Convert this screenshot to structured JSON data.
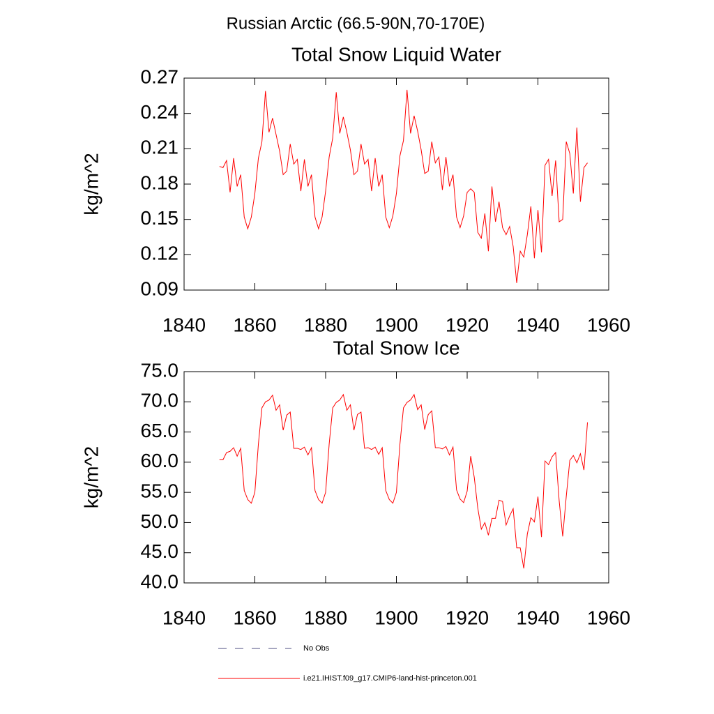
{
  "title": "Russian Arctic (66.5-90N,70-170E)",
  "legend_items": [
    {
      "name": "No Obs",
      "color": "#4d4d80",
      "dash": "12 12"
    }
  ],
  "chart_data": [
    {
      "type": "line",
      "title": "Total Snow Liquid Water",
      "ylabel": "kg/m^2",
      "x": [
        1850,
        1851,
        1852,
        1853,
        1854,
        1855,
        1856,
        1857,
        1858,
        1859,
        1860,
        1861,
        1862,
        1863,
        1864,
        1865,
        1866,
        1867,
        1868,
        1869,
        1870,
        1871,
        1872,
        1873,
        1874,
        1875,
        1876,
        1877,
        1878,
        1879,
        1880,
        1881,
        1882,
        1883,
        1884,
        1885,
        1886,
        1887,
        1888,
        1889,
        1890,
        1891,
        1892,
        1893,
        1894,
        1895,
        1896,
        1897,
        1898,
        1899,
        1900,
        1901,
        1902,
        1903,
        1904,
        1905,
        1906,
        1907,
        1908,
        1909,
        1910,
        1911,
        1912,
        1913,
        1914,
        1915,
        1916,
        1917,
        1918,
        1919,
        1920,
        1921,
        1922,
        1923,
        1924,
        1925,
        1926,
        1927,
        1928,
        1929,
        1930,
        1931,
        1932,
        1933,
        1934,
        1935,
        1936,
        1937,
        1938,
        1939,
        1940,
        1941,
        1942,
        1943,
        1944,
        1945,
        1946,
        1947,
        1948,
        1949,
        1950,
        1951,
        1952,
        1953,
        1954
      ],
      "xlim": [
        1840,
        1960
      ],
      "xticks": [
        1840,
        1860,
        1880,
        1900,
        1920,
        1940,
        1960
      ],
      "ylim": [
        0.09,
        0.27
      ],
      "yticks": [
        0.09,
        0.12,
        0.15,
        0.18,
        0.21,
        0.24,
        0.27
      ],
      "series": [
        {
          "name": "i.e21.IHIST.f09_g17.CMIP6-land-hist-princeton.001",
          "color": "#ff0000",
          "values": [
            0.195,
            0.194,
            0.2,
            0.173,
            0.202,
            0.178,
            0.188,
            0.152,
            0.142,
            0.152,
            0.172,
            0.202,
            0.216,
            0.259,
            0.224,
            0.236,
            0.222,
            0.208,
            0.188,
            0.191,
            0.214,
            0.197,
            0.201,
            0.174,
            0.201,
            0.178,
            0.188,
            0.152,
            0.142,
            0.152,
            0.174,
            0.203,
            0.219,
            0.258,
            0.223,
            0.237,
            0.224,
            0.209,
            0.188,
            0.191,
            0.214,
            0.197,
            0.201,
            0.174,
            0.202,
            0.178,
            0.188,
            0.152,
            0.143,
            0.153,
            0.172,
            0.204,
            0.217,
            0.26,
            0.223,
            0.238,
            0.225,
            0.209,
            0.189,
            0.191,
            0.216,
            0.198,
            0.203,
            0.175,
            0.203,
            0.178,
            0.188,
            0.152,
            0.143,
            0.153,
            0.173,
            0.176,
            0.173,
            0.139,
            0.134,
            0.155,
            0.123,
            0.178,
            0.148,
            0.165,
            0.143,
            0.137,
            0.144,
            0.127,
            0.096,
            0.123,
            0.118,
            0.137,
            0.161,
            0.117,
            0.158,
            0.122,
            0.196,
            0.201,
            0.17,
            0.2,
            0.148,
            0.15,
            0.216,
            0.206,
            0.172,
            0.228,
            0.165,
            0.194,
            0.198
          ]
        }
      ]
    },
    {
      "type": "line",
      "title": "Total Snow Ice",
      "ylabel": "kg/m^2",
      "x": [
        1850,
        1851,
        1852,
        1853,
        1854,
        1855,
        1856,
        1857,
        1858,
        1859,
        1860,
        1861,
        1862,
        1863,
        1864,
        1865,
        1866,
        1867,
        1868,
        1869,
        1870,
        1871,
        1872,
        1873,
        1874,
        1875,
        1876,
        1877,
        1878,
        1879,
        1880,
        1881,
        1882,
        1883,
        1884,
        1885,
        1886,
        1887,
        1888,
        1889,
        1890,
        1891,
        1892,
        1893,
        1894,
        1895,
        1896,
        1897,
        1898,
        1899,
        1900,
        1901,
        1902,
        1903,
        1904,
        1905,
        1906,
        1907,
        1908,
        1909,
        1910,
        1911,
        1912,
        1913,
        1914,
        1915,
        1916,
        1917,
        1918,
        1919,
        1920,
        1921,
        1922,
        1923,
        1924,
        1925,
        1926,
        1927,
        1928,
        1929,
        1930,
        1931,
        1932,
        1933,
        1934,
        1935,
        1936,
        1937,
        1938,
        1939,
        1940,
        1941,
        1942,
        1943,
        1944,
        1945,
        1946,
        1947,
        1948,
        1949,
        1950,
        1951,
        1952,
        1953,
        1954
      ],
      "xlim": [
        1840,
        1960
      ],
      "xticks": [
        1840,
        1860,
        1880,
        1900,
        1920,
        1940,
        1960
      ],
      "ylim": [
        40,
        75
      ],
      "yticks": [
        {
          "value": 40,
          "label": "40.0"
        },
        {
          "value": 45,
          "label": "45.0"
        },
        {
          "value": 50,
          "label": "50.0"
        },
        {
          "value": 55,
          "label": "55.0"
        },
        {
          "value": 60,
          "label": "60.0"
        },
        {
          "value": 65,
          "label": "65.0"
        },
        {
          "value": 70,
          "label": "70.0"
        },
        {
          "value": 75,
          "label": "75.0"
        }
      ],
      "series": [
        {
          "name": "i.e21.IHIST.f09_g17.CMIP6-land-hist-princeton.001",
          "color": "#ff0000",
          "values": [
            60.4,
            60.4,
            61.6,
            61.8,
            62.4,
            61.0,
            62.3,
            55.3,
            53.8,
            53.2,
            55.0,
            63.0,
            69.0,
            70.0,
            70.3,
            71.1,
            68.6,
            69.5,
            65.3,
            67.8,
            68.3,
            62.3,
            62.3,
            62.1,
            62.5,
            61.2,
            62.4,
            55.3,
            53.8,
            53.2,
            55.0,
            63.0,
            69.0,
            69.9,
            70.3,
            71.2,
            68.6,
            69.5,
            65.3,
            67.9,
            68.3,
            62.3,
            62.4,
            62.1,
            62.5,
            61.3,
            62.4,
            55.3,
            53.8,
            53.2,
            55.0,
            63.0,
            69.0,
            69.9,
            70.3,
            71.2,
            68.7,
            69.5,
            65.4,
            67.9,
            68.5,
            62.4,
            62.4,
            62.2,
            62.6,
            61.2,
            62.5,
            55.4,
            53.9,
            53.3,
            55.2,
            61.0,
            57.5,
            52.4,
            48.9,
            50.0,
            47.9,
            50.7,
            50.7,
            53.7,
            53.5,
            49.6,
            51.1,
            52.3,
            45.8,
            45.8,
            42.4,
            48.1,
            50.8,
            50.1,
            54.3,
            47.6,
            60.2,
            59.6,
            60.9,
            61.6,
            53.6,
            47.7,
            54.3,
            60.3,
            61.1,
            59.9,
            61.4,
            58.7,
            66.6
          ]
        }
      ]
    }
  ]
}
